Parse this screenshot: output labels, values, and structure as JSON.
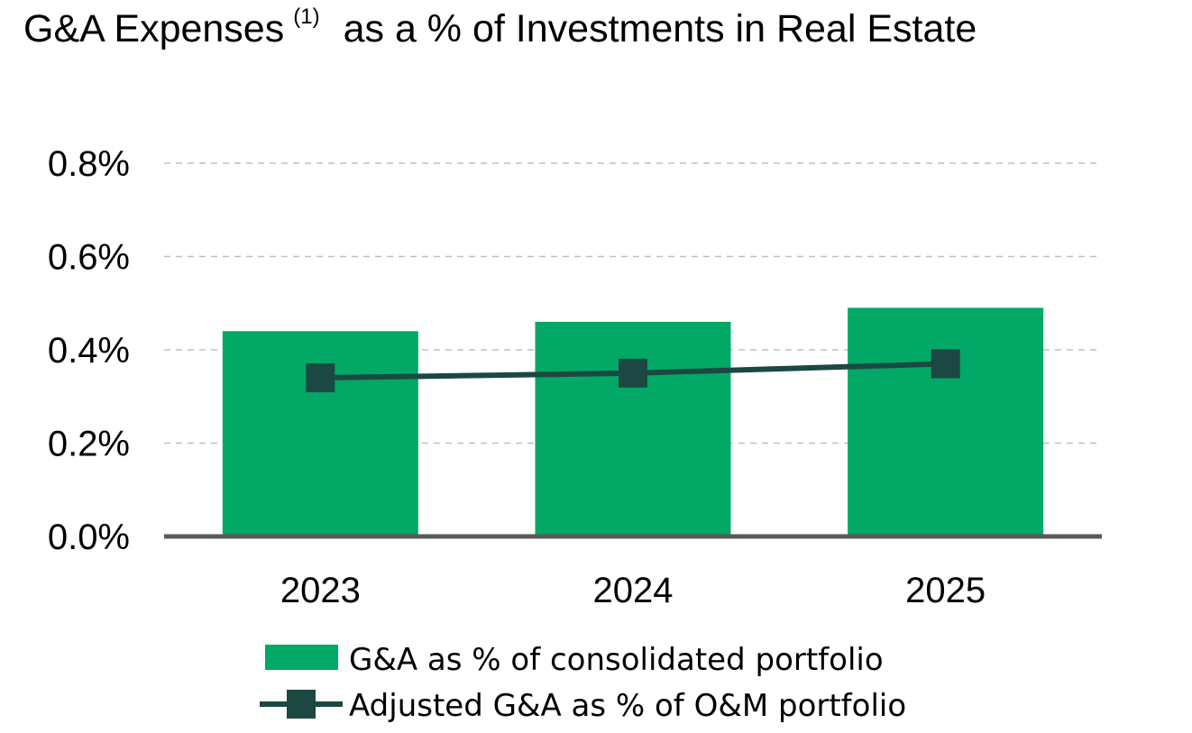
{
  "chart_data": {
    "type": "bar",
    "title": "G&A Expenses",
    "title_superscript": "(1)",
    "title_rest": "as a % of Investments in Real Estate",
    "categories": [
      "2023",
      "2024",
      "2025"
    ],
    "series": [
      {
        "name": "G&A as % of consolidated portfolio",
        "type": "bar",
        "values": [
          0.44,
          0.46,
          0.49
        ],
        "color": "#02A865"
      },
      {
        "name": "Adjusted G&A as % of O&M portfolio",
        "type": "line",
        "marker": "square",
        "values": [
          0.34,
          0.35,
          0.37
        ],
        "color": "#1C4843"
      }
    ],
    "ylim": [
      0,
      0.8
    ],
    "yticks": [
      "0.0%",
      "0.2%",
      "0.4%",
      "0.6%",
      "0.8%"
    ],
    "ytick_values": [
      0,
      0.2,
      0.4,
      0.6,
      0.8
    ],
    "xlabel": "",
    "ylabel": "",
    "grid": true,
    "legend_position": "bottom",
    "axis_color": "#5A5A5A",
    "grid_color": "#BFBFBF"
  }
}
